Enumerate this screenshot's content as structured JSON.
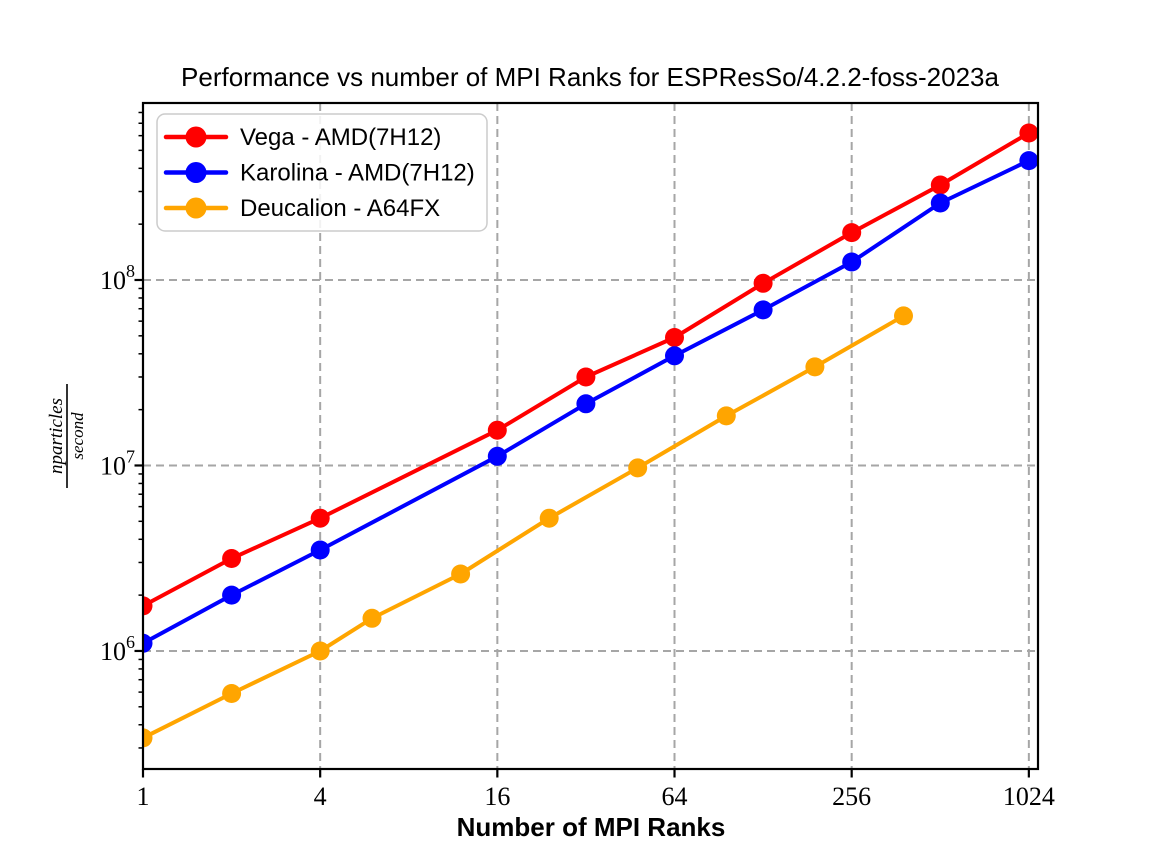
{
  "figure": {
    "title": "Performance vs number of MPI Ranks for ESPResSo/4.2.2-foss-2023a"
  },
  "axes": {
    "xlabel": "Number of MPI Ranks",
    "ylabel_numerator": "nparticles",
    "ylabel_denominator": "second",
    "x_tick_labels": [
      "1",
      "4",
      "16",
      "64",
      "256",
      "1024"
    ],
    "y_tick_base": "10",
    "y_tick_exponents": [
      "6",
      "7",
      "8"
    ]
  },
  "colors": {
    "grid": "#a6a6a6",
    "spine": "#000000",
    "tick": "#000000",
    "legend_border": "#cccccc",
    "legend_fill": "rgba(255,255,255,0.85)"
  },
  "chart_data": {
    "type": "line",
    "title": "Performance vs number of MPI Ranks for ESPResSo/4.2.2-foss-2023a",
    "xlabel": "Number of MPI Ranks",
    "ylabel": "nparticles/second",
    "x_scale": "log",
    "y_scale": "log",
    "grid": true,
    "legend_position": "upper-left",
    "x_ticks": [
      1,
      4,
      16,
      64,
      256,
      1024
    ],
    "y_ticks": [
      1000000,
      10000000,
      100000000
    ],
    "xlim": [
      1,
      1100
    ],
    "ylim": [
      231000,
      900000000
    ],
    "series": [
      {
        "name": "Vega - AMD(7H12)",
        "color": "#ff0000",
        "marker": "circle",
        "x": [
          1,
          2,
          4,
          16,
          32,
          64,
          128,
          256,
          512,
          1024
        ],
        "y": [
          1750000,
          3150000,
          5200000,
          15500000,
          30000000,
          49000000,
          96000000,
          180000000,
          325000000,
          620000000
        ]
      },
      {
        "name": "Karolina - AMD(7H12)",
        "color": "#0000ff",
        "marker": "circle",
        "x": [
          1,
          2,
          4,
          16,
          32,
          64,
          128,
          256,
          512,
          1024
        ],
        "y": [
          1100000,
          2000000,
          3500000,
          11200000,
          21500000,
          39000000,
          69000000,
          125000000,
          260000000,
          440000000
        ]
      },
      {
        "name": "Deucalion - A64FX",
        "color": "#ffa500",
        "marker": "circle",
        "x": [
          1,
          2,
          4,
          6,
          12,
          24,
          48,
          96,
          192,
          384
        ],
        "y": [
          340000,
          590000,
          1000000,
          1500000,
          2600000,
          5200000,
          9700000,
          18500000,
          34000000,
          64000000
        ]
      }
    ]
  }
}
